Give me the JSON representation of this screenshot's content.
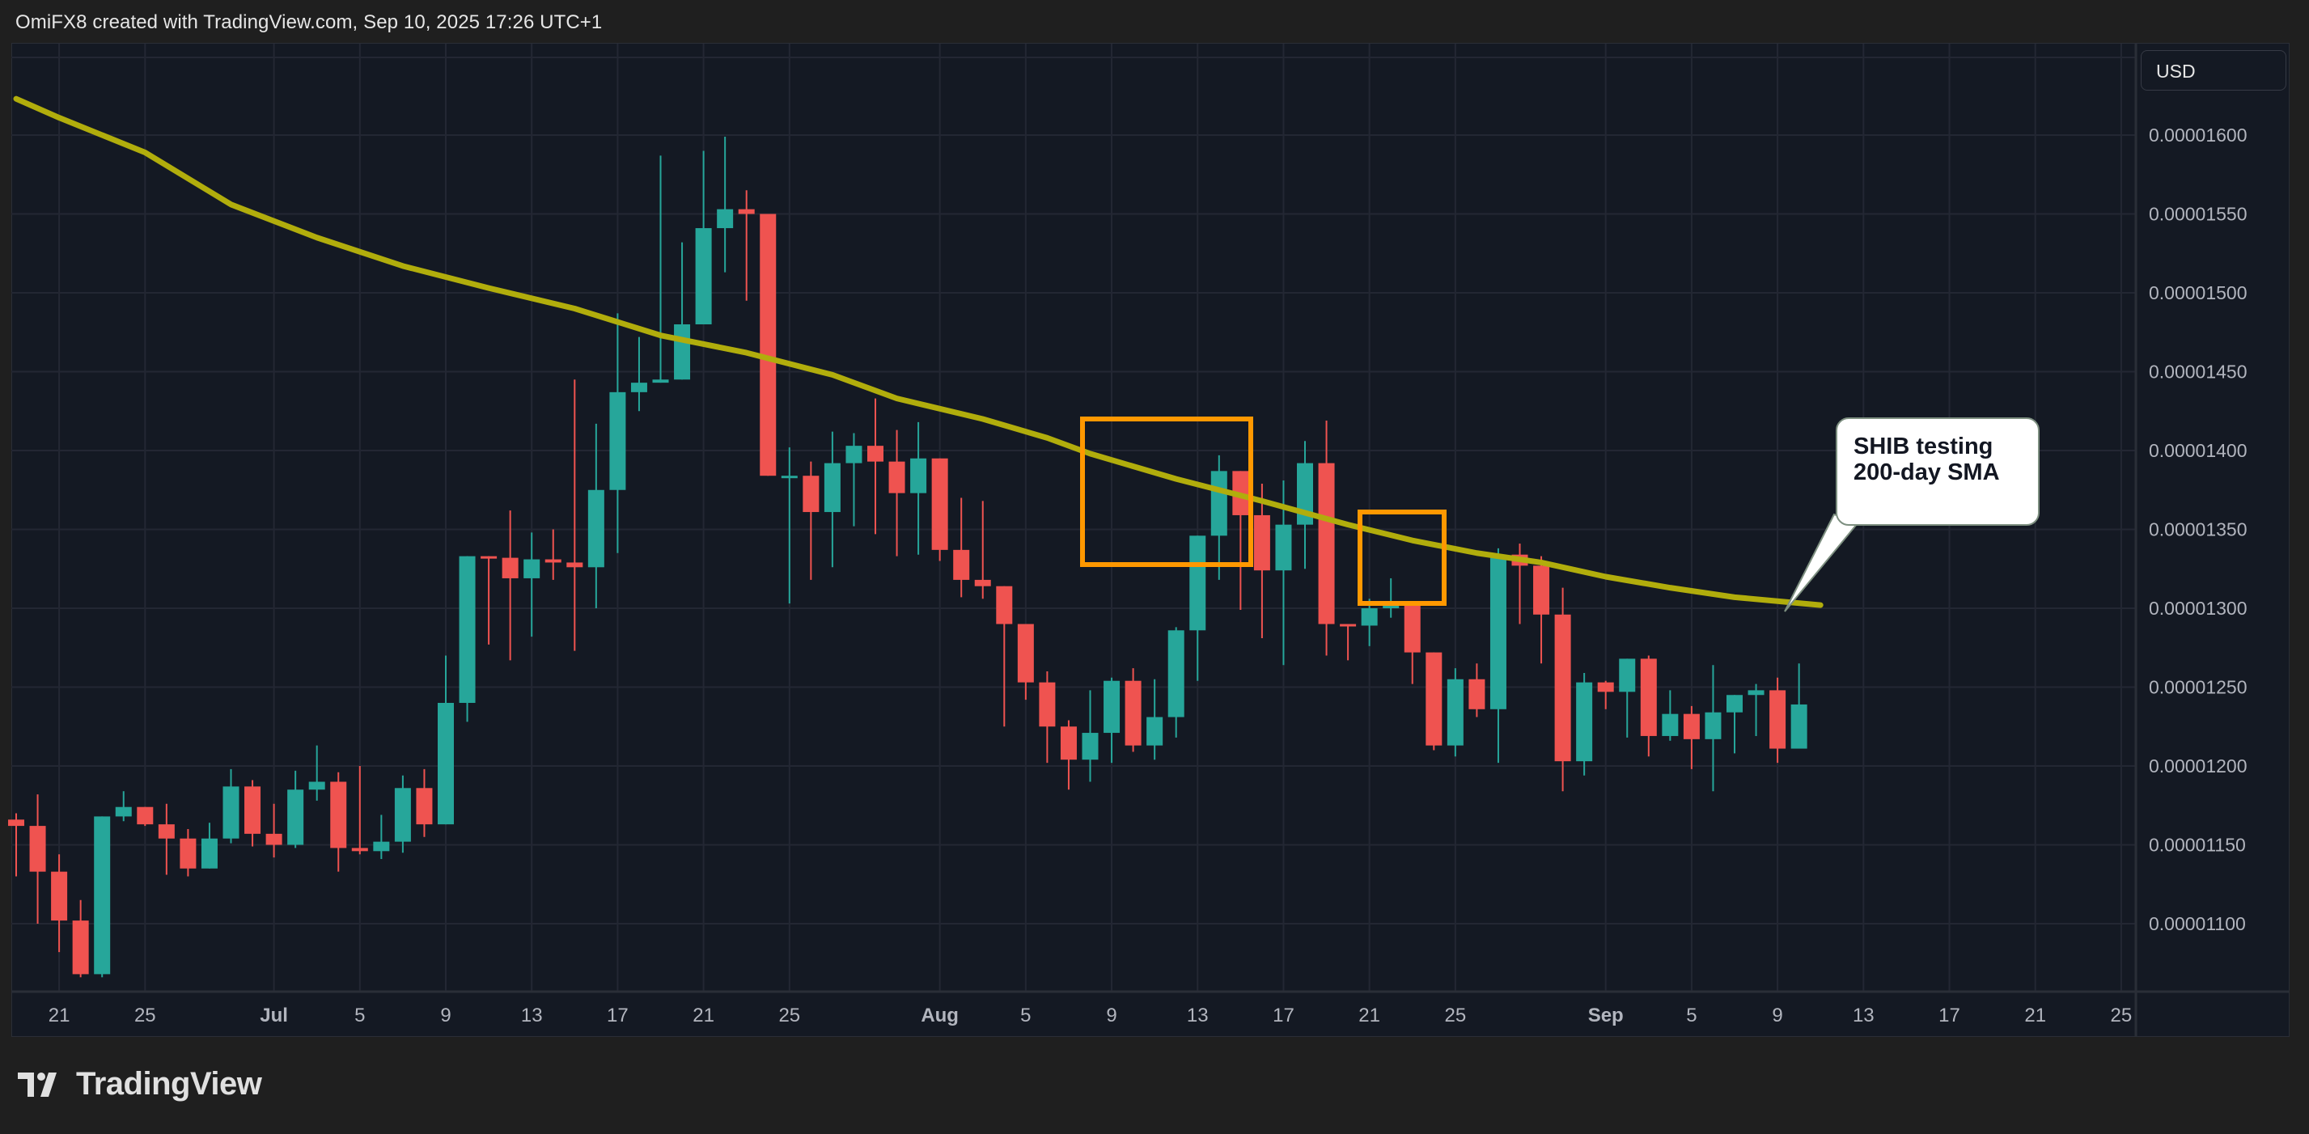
{
  "header": {
    "attribution": "OmiFX8 created with TradingView.com, Sep 10, 2025 17:26 UTC+1"
  },
  "price_scale": {
    "currency": "USD",
    "ticks": [
      "0.00001600",
      "0.00001550",
      "0.00001500",
      "0.00001450",
      "0.00001400",
      "0.00001350",
      "0.00001300",
      "0.00001250",
      "0.00001200",
      "0.00001150",
      "0.00001100"
    ]
  },
  "time_scale": {
    "ticks": [
      {
        "label": "21",
        "bold": false
      },
      {
        "label": "25",
        "bold": false
      },
      {
        "label": "Jul",
        "bold": true
      },
      {
        "label": "5",
        "bold": false
      },
      {
        "label": "9",
        "bold": false
      },
      {
        "label": "13",
        "bold": false
      },
      {
        "label": "17",
        "bold": false
      },
      {
        "label": "21",
        "bold": false
      },
      {
        "label": "25",
        "bold": false
      },
      {
        "label": "Aug",
        "bold": true
      },
      {
        "label": "5",
        "bold": false
      },
      {
        "label": "9",
        "bold": false
      },
      {
        "label": "13",
        "bold": false
      },
      {
        "label": "17",
        "bold": false
      },
      {
        "label": "21",
        "bold": false
      },
      {
        "label": "25",
        "bold": false
      },
      {
        "label": "Sep",
        "bold": true
      },
      {
        "label": "5",
        "bold": false
      },
      {
        "label": "9",
        "bold": false
      },
      {
        "label": "13",
        "bold": false
      },
      {
        "label": "17",
        "bold": false
      },
      {
        "label": "21",
        "bold": false
      },
      {
        "label": "25",
        "bold": false
      }
    ]
  },
  "annotation": {
    "callout_text": "SHIB testing\n200-day SMA"
  },
  "branding": {
    "logo_text": "TradingView"
  },
  "colors": {
    "up": "#26a69a",
    "down": "#ef5350",
    "sma": "#b1ad0c",
    "highlight_box": "#ff9800",
    "background": "#141923",
    "grid": "#232733",
    "axis_text": "#b2b5be"
  },
  "chart_data": {
    "type": "candlestick",
    "title": "SHIB/USD Daily with 200-day SMA",
    "xlabel": "",
    "ylabel": "USD",
    "ylim": [
      1.068e-05,
      1.64e-05
    ],
    "grid": true,
    "legend": "none",
    "price_unit": "1e-8 USD",
    "dates": [
      "Jun 19",
      "Jun 20",
      "Jun 21",
      "Jun 22",
      "Jun 23",
      "Jun 24",
      "Jun 25",
      "Jun 26",
      "Jun 27",
      "Jun 28",
      "Jun 29",
      "Jun 30",
      "Jul 1",
      "Jul 2",
      "Jul 3",
      "Jul 4",
      "Jul 5",
      "Jul 6",
      "Jul 7",
      "Jul 8",
      "Jul 9",
      "Jul 10",
      "Jul 11",
      "Jul 12",
      "Jul 13",
      "Jul 14",
      "Jul 15",
      "Jul 16",
      "Jul 17",
      "Jul 18",
      "Jul 19",
      "Jul 20",
      "Jul 21",
      "Jul 22",
      "Jul 23",
      "Jul 24",
      "Jul 25",
      "Jul 26",
      "Jul 27",
      "Jul 28",
      "Jul 29",
      "Jul 30",
      "Jul 31",
      "Aug 1",
      "Aug 2",
      "Aug 3",
      "Aug 4",
      "Aug 5",
      "Aug 6",
      "Aug 7",
      "Aug 8",
      "Aug 9",
      "Aug 10",
      "Aug 11",
      "Aug 12",
      "Aug 13",
      "Aug 14",
      "Aug 15",
      "Aug 16",
      "Aug 17",
      "Aug 18",
      "Aug 19",
      "Aug 20",
      "Aug 21",
      "Aug 22",
      "Aug 23",
      "Aug 24",
      "Aug 25",
      "Aug 26",
      "Aug 27",
      "Aug 28",
      "Aug 29",
      "Aug 30",
      "Aug 31",
      "Sep 1",
      "Sep 2",
      "Sep 3",
      "Sep 4",
      "Sep 5",
      "Sep 6",
      "Sep 7",
      "Sep 8",
      "Sep 9",
      "Sep 10"
    ],
    "ohlc": [
      [
        1166,
        1170,
        1130,
        1162
      ],
      [
        1162,
        1182,
        1100,
        1133
      ],
      [
        1133,
        1144,
        1082,
        1102
      ],
      [
        1102,
        1115,
        1066,
        1068
      ],
      [
        1068,
        1168,
        1066,
        1168
      ],
      [
        1168,
        1184,
        1165,
        1174
      ],
      [
        1174,
        1173,
        1162,
        1163
      ],
      [
        1163,
        1176,
        1131,
        1154
      ],
      [
        1154,
        1160,
        1130,
        1135
      ],
      [
        1135,
        1164,
        1137,
        1154
      ],
      [
        1154,
        1198,
        1151,
        1187
      ],
      [
        1187,
        1191,
        1149,
        1157
      ],
      [
        1157,
        1176,
        1142,
        1150
      ],
      [
        1150,
        1197,
        1148,
        1185
      ],
      [
        1185,
        1213,
        1178,
        1190
      ],
      [
        1190,
        1196,
        1133,
        1148
      ],
      [
        1148,
        1200,
        1144,
        1146
      ],
      [
        1146,
        1169,
        1141,
        1152
      ],
      [
        1152,
        1194,
        1145,
        1186
      ],
      [
        1186,
        1198,
        1155,
        1163
      ],
      [
        1163,
        1270,
        1164,
        1240
      ],
      [
        1240,
        1278,
        1228,
        1333
      ],
      [
        1333,
        1322,
        1277,
        1332
      ],
      [
        1332,
        1362,
        1267,
        1319
      ],
      [
        1319,
        1348,
        1282,
        1331
      ],
      [
        1331,
        1350,
        1318,
        1329
      ],
      [
        1329,
        1445,
        1273,
        1326
      ],
      [
        1326,
        1417,
        1300,
        1375
      ],
      [
        1375,
        1487,
        1335,
        1437
      ],
      [
        1437,
        1472,
        1425,
        1443
      ],
      [
        1443,
        1587,
        1459,
        1445
      ],
      [
        1445,
        1532,
        1459,
        1480
      ],
      [
        1480,
        1590,
        1491,
        1541
      ],
      [
        1541,
        1599,
        1513,
        1553
      ],
      [
        1553,
        1565,
        1495,
        1550
      ],
      [
        1550,
        1545,
        1413,
        1384
      ],
      [
        1384,
        1402,
        1303,
        1384
      ],
      [
        1384,
        1393,
        1318,
        1361
      ],
      [
        1361,
        1412,
        1326,
        1392
      ],
      [
        1392,
        1411,
        1352,
        1403
      ],
      [
        1403,
        1433,
        1347,
        1393
      ],
      [
        1393,
        1413,
        1333,
        1373
      ],
      [
        1373,
        1418,
        1334,
        1395
      ],
      [
        1395,
        1388,
        1330,
        1337
      ],
      [
        1337,
        1370,
        1307,
        1318
      ],
      [
        1318,
        1368,
        1306,
        1314
      ],
      [
        1314,
        1295,
        1225,
        1290
      ],
      [
        1290,
        1290,
        1242,
        1253
      ],
      [
        1253,
        1260,
        1202,
        1225
      ],
      [
        1225,
        1229,
        1185,
        1204
      ],
      [
        1204,
        1248,
        1190,
        1221
      ],
      [
        1221,
        1256,
        1202,
        1254
      ],
      [
        1254,
        1262,
        1209,
        1213
      ],
      [
        1213,
        1255,
        1204,
        1231
      ],
      [
        1231,
        1288,
        1218,
        1286
      ],
      [
        1286,
        1304,
        1254,
        1346
      ],
      [
        1346,
        1397,
        1318,
        1387
      ],
      [
        1387,
        1385,
        1299,
        1359
      ],
      [
        1359,
        1379,
        1281,
        1324
      ],
      [
        1324,
        1381,
        1264,
        1353
      ],
      [
        1353,
        1406,
        1325,
        1392
      ],
      [
        1392,
        1419,
        1270,
        1290
      ],
      [
        1290,
        1277,
        1267,
        1289
      ],
      [
        1289,
        1306,
        1276,
        1300
      ],
      [
        1300,
        1319,
        1294,
        1303
      ],
      [
        1303,
        1301,
        1252,
        1272
      ],
      [
        1272,
        1257,
        1210,
        1213
      ],
      [
        1213,
        1262,
        1206,
        1255
      ],
      [
        1255,
        1265,
        1231,
        1236
      ],
      [
        1236,
        1338,
        1202,
        1334
      ],
      [
        1334,
        1341,
        1290,
        1327
      ],
      [
        1327,
        1333,
        1265,
        1296
      ],
      [
        1296,
        1313,
        1184,
        1203
      ],
      [
        1203,
        1259,
        1194,
        1253
      ],
      [
        1253,
        1254,
        1236,
        1247
      ],
      [
        1247,
        1268,
        1218,
        1268
      ],
      [
        1268,
        1270,
        1206,
        1219
      ],
      [
        1219,
        1248,
        1216,
        1233
      ],
      [
        1233,
        1238,
        1198,
        1217
      ],
      [
        1217,
        1264,
        1184,
        1234
      ],
      [
        1234,
        1233,
        1208,
        1245
      ],
      [
        1245,
        1252,
        1219,
        1248
      ],
      [
        1248,
        1256,
        1202,
        1211
      ],
      [
        1211,
        1265,
        1211,
        1239
      ]
    ],
    "sma_200": [
      [
        0,
        1623
      ],
      [
        2,
        1611
      ],
      [
        6,
        1589
      ],
      [
        10,
        1556
      ],
      [
        14,
        1535
      ],
      [
        18,
        1517
      ],
      [
        22,
        1503
      ],
      [
        26,
        1490
      ],
      [
        30,
        1473
      ],
      [
        34,
        1462
      ],
      [
        38,
        1448
      ],
      [
        41,
        1433
      ],
      [
        45,
        1420
      ],
      [
        48,
        1408
      ],
      [
        50,
        1398
      ],
      [
        54,
        1382
      ],
      [
        58,
        1368
      ],
      [
        62,
        1353
      ],
      [
        65,
        1343
      ],
      [
        68,
        1335
      ],
      [
        71,
        1329
      ],
      [
        74,
        1320
      ],
      [
        77,
        1313
      ],
      [
        80,
        1307
      ],
      [
        84,
        1302
      ]
    ],
    "highlight_boxes": [
      {
        "from": "Aug 8",
        "to": "Aug 16",
        "top": 1.423e-05,
        "bottom": 1.328e-05
      },
      {
        "from": "Aug 21",
        "to": "Aug 24",
        "top": 1.362e-05,
        "bottom": 1.303e-05
      }
    ],
    "annotations": [
      "SHIB testing 200-day SMA"
    ]
  }
}
